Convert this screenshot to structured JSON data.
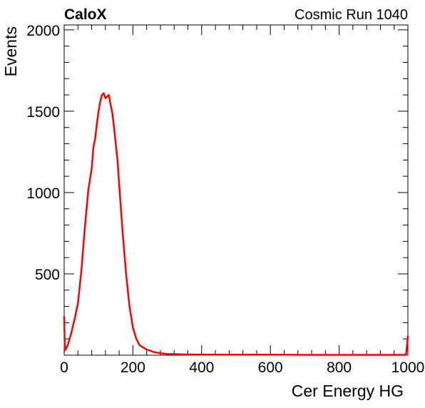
{
  "header": {
    "experiment": "CaloX",
    "run": "Cosmic Run 1040"
  },
  "chart_data": {
    "type": "line",
    "title": "",
    "xlabel": "Cer Energy HG",
    "ylabel": "Events",
    "xlim": [
      0,
      1000
    ],
    "ylim": [
      0,
      2030
    ],
    "xticks": [
      0,
      200,
      400,
      600,
      800,
      1000
    ],
    "yticks": [
      500,
      1000,
      1500,
      2000
    ],
    "grid": false,
    "legend": "none",
    "line_color": "#ff0000",
    "series": [
      {
        "x": [
          0,
          2,
          5,
          10,
          20,
          30,
          40,
          50,
          60,
          70,
          80,
          85,
          90,
          95,
          100,
          105,
          110,
          115,
          120,
          125,
          130,
          135,
          140,
          145,
          150,
          155,
          160,
          170,
          180,
          190,
          200,
          210,
          220,
          240,
          260,
          280,
          300,
          350,
          400,
          500,
          600,
          700,
          800,
          900,
          990,
          995,
          1000
        ],
        "y": [
          240,
          30,
          40,
          60,
          130,
          220,
          320,
          520,
          780,
          1010,
          1150,
          1280,
          1330,
          1420,
          1500,
          1560,
          1600,
          1610,
          1580,
          1590,
          1600,
          1540,
          1490,
          1400,
          1300,
          1200,
          1050,
          760,
          500,
          300,
          170,
          100,
          60,
          35,
          20,
          12,
          8,
          5,
          4,
          3,
          3,
          2,
          2,
          2,
          2,
          10,
          120
        ]
      }
    ]
  }
}
